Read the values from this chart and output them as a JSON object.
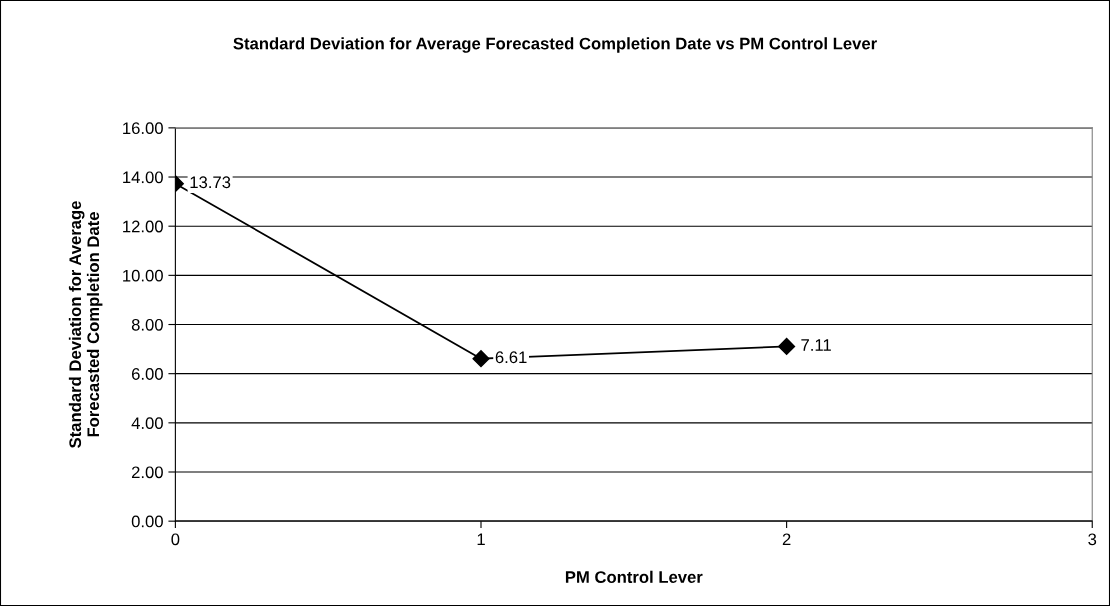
{
  "chart_data": {
    "type": "line",
    "title": "Standard Deviation for Average Forecasted Completion Date vs PM Control Lever",
    "xlabel": "PM Control Lever",
    "ylabel": "Standard Deviation for Average\nForecasted Completion Date",
    "x": [
      0,
      1,
      2
    ],
    "series": [
      {
        "color": "#000000",
        "values": [
          13.73,
          6.61,
          7.11
        ]
      }
    ],
    "xlim": [
      0,
      3
    ],
    "xticks": [
      0,
      1,
      2,
      3
    ],
    "ylim": [
      0,
      16
    ],
    "yticks": [
      {
        "value": 0,
        "label": "0.00"
      },
      {
        "value": 2,
        "label": "2.00"
      },
      {
        "value": 4,
        "label": "4.00"
      },
      {
        "value": 6,
        "label": "6.00"
      },
      {
        "value": 8,
        "label": "8.00"
      },
      {
        "value": 10,
        "label": "10.00"
      },
      {
        "value": 12,
        "label": "12.00"
      },
      {
        "value": 14,
        "label": "14.00"
      },
      {
        "value": 16,
        "label": "16.00"
      }
    ],
    "grid": "y",
    "marker": "diamond",
    "line_style": "solid",
    "data_labels": true,
    "legend": false
  }
}
